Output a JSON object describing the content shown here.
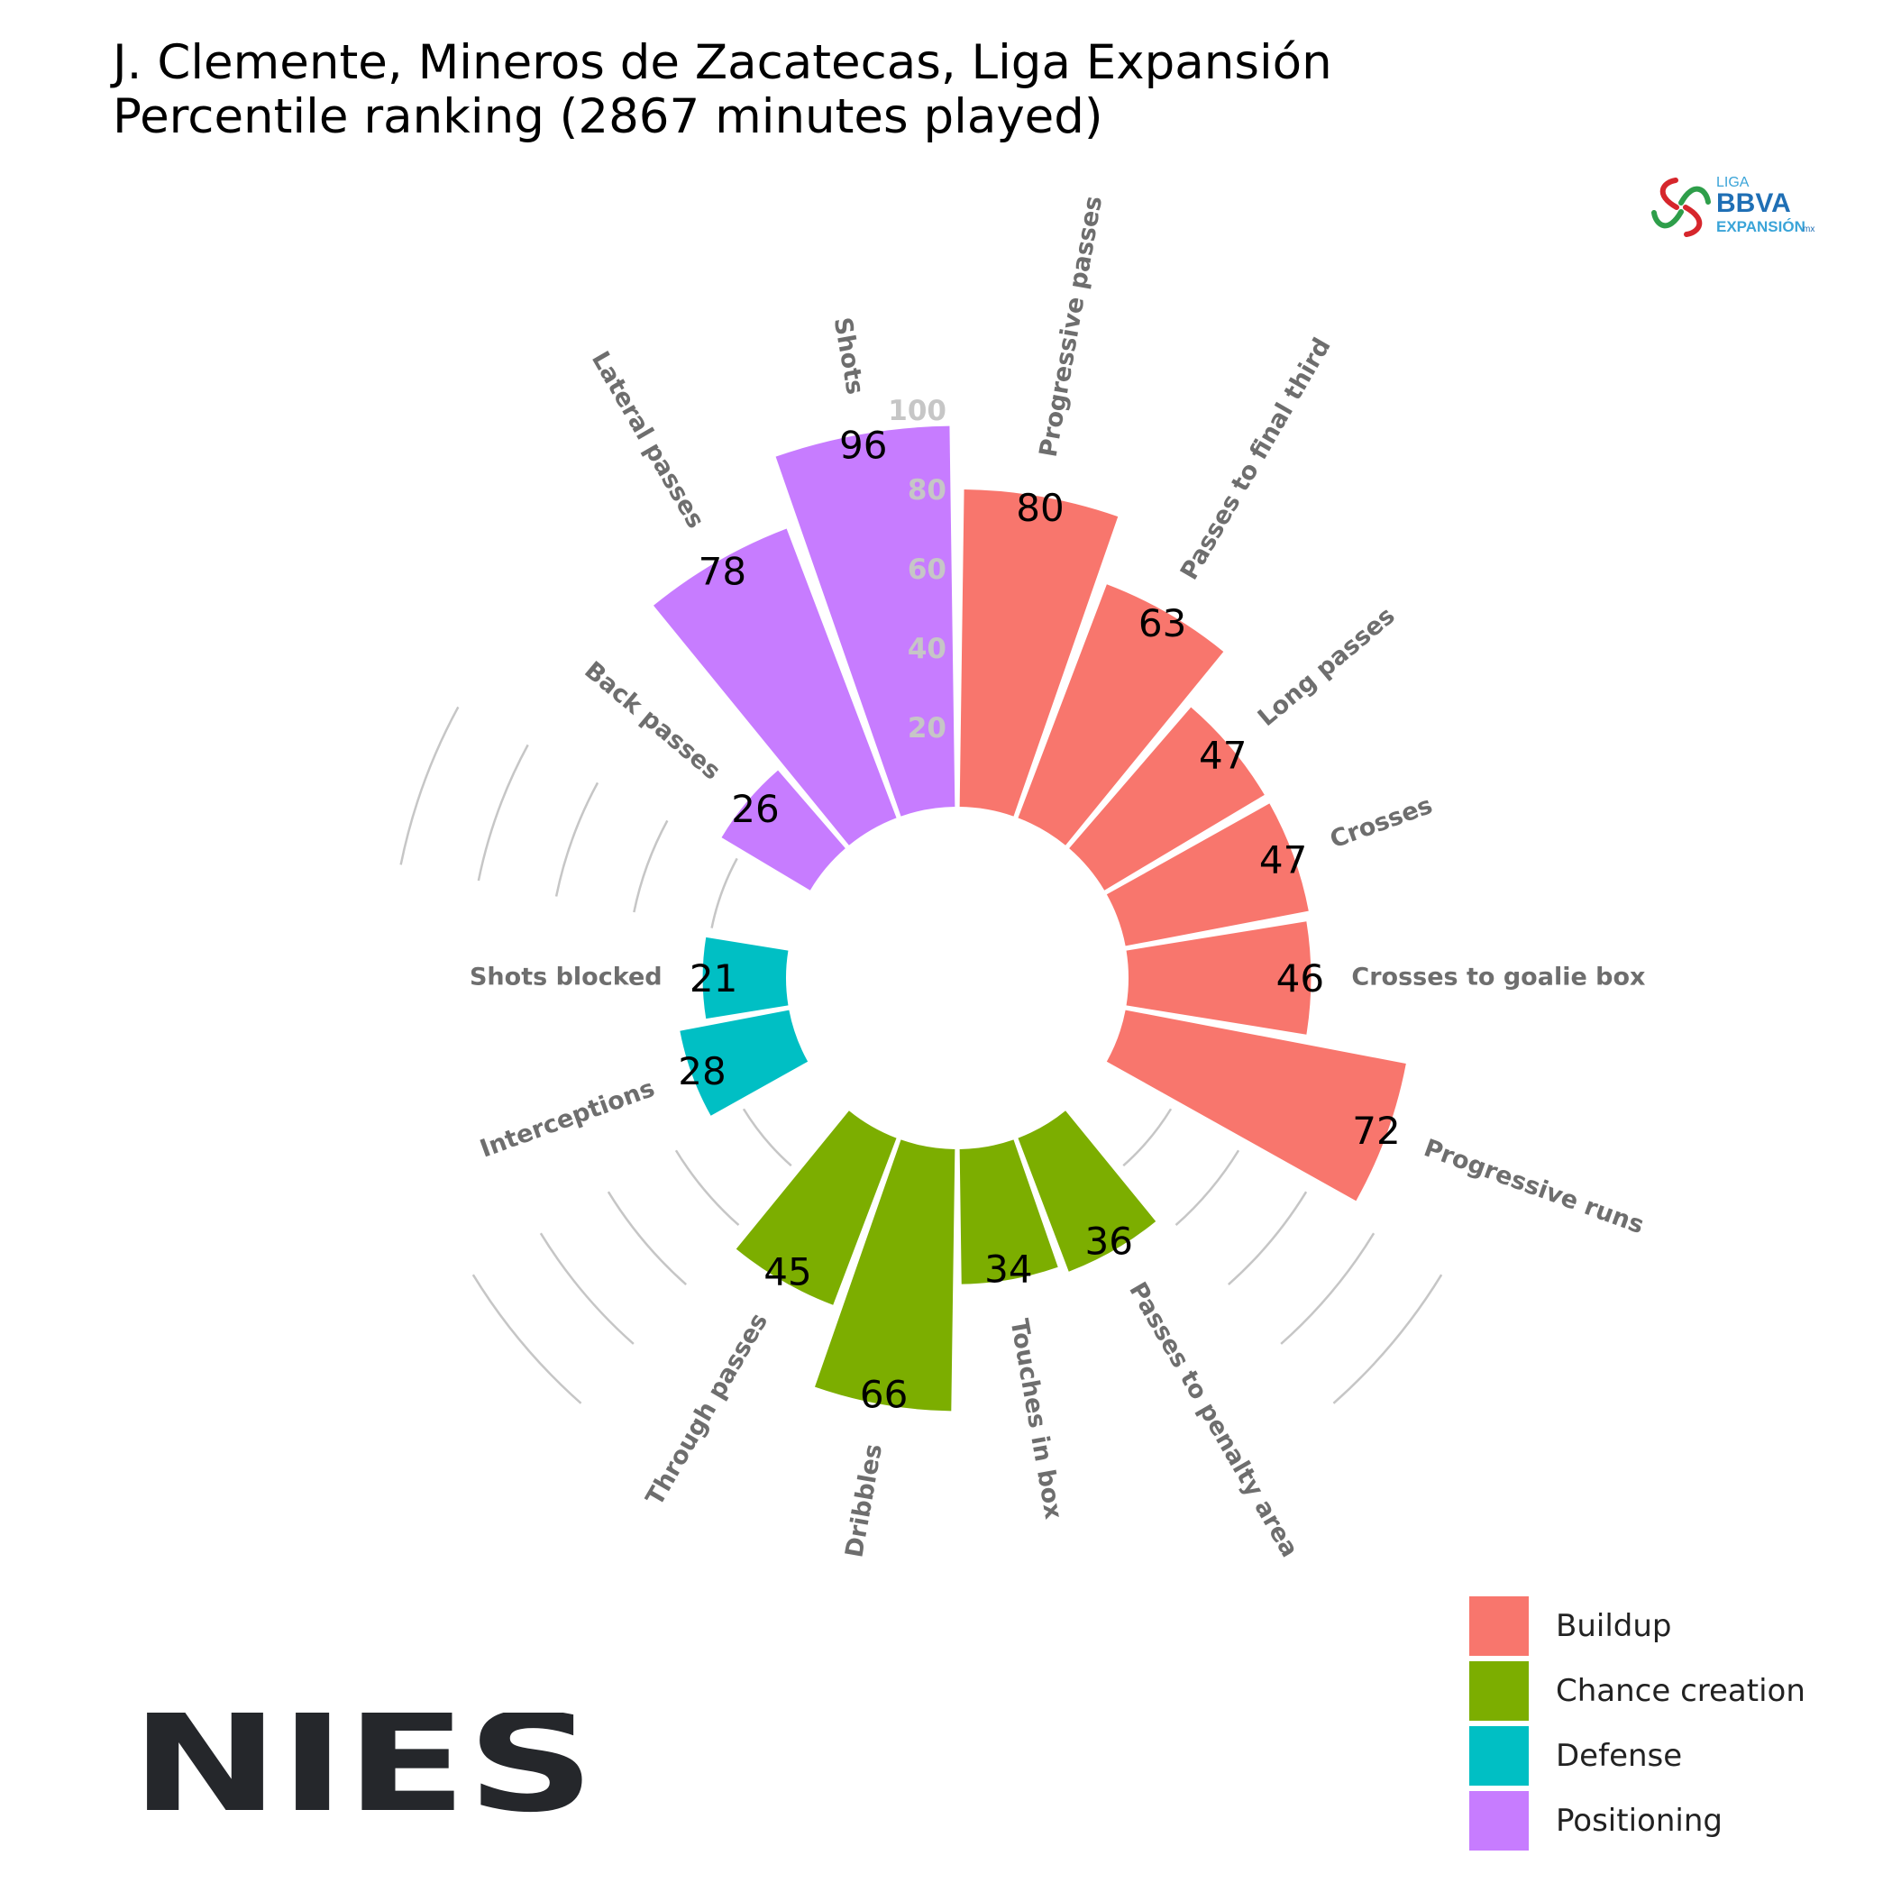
{
  "title": {
    "line1": "J. Clemente, Mineros de Zacatecas, Liga Expansión",
    "line2": "Percentile ranking (2867 minutes played)"
  },
  "colors": {
    "Buildup": "#F8766D",
    "Chance creation": "#7CAE00",
    "Defense": "#00BFC4",
    "Positioning": "#C77CFF",
    "grid": "#c6c6c6",
    "category_label": "#6e6e6e",
    "brand": "#25272b"
  },
  "chart_data": {
    "type": "polar-bar",
    "scale": {
      "min": 0,
      "max": 100,
      "ticks": [
        20,
        40,
        60,
        80,
        100
      ]
    },
    "categories": [
      {
        "name": "Progressive passes",
        "group": "Buildup",
        "value": 80
      },
      {
        "name": "Passes to final third",
        "group": "Buildup",
        "value": 63
      },
      {
        "name": "Long passes",
        "group": "Buildup",
        "value": 47
      },
      {
        "name": "Crosses",
        "group": "Buildup",
        "value": 47
      },
      {
        "name": "Crosses to goalie box",
        "group": "Buildup",
        "value": 46
      },
      {
        "name": "Progressive runs",
        "group": "Buildup",
        "value": 72
      },
      {
        "name": "Passes to penalty area",
        "group": "Chance creation",
        "value": 36
      },
      {
        "name": "Touches in box",
        "group": "Chance creation",
        "value": 34
      },
      {
        "name": "Dribbles",
        "group": "Chance creation",
        "value": 66
      },
      {
        "name": "Through passes",
        "group": "Chance creation",
        "value": 45
      },
      {
        "name": "Interceptions",
        "group": "Defense",
        "value": 28
      },
      {
        "name": "Shots blocked",
        "group": "Defense",
        "value": 21
      },
      {
        "name": "Back passes",
        "group": "Positioning",
        "value": 26
      },
      {
        "name": "Lateral passes",
        "group": "Positioning",
        "value": 78
      },
      {
        "name": "Shots",
        "group": "Positioning",
        "value": 96
      }
    ]
  },
  "legend": {
    "items": [
      "Buildup",
      "Chance creation",
      "Defense",
      "Positioning"
    ]
  },
  "logos": {
    "liga": {
      "line1": "LIGA",
      "line2": "BBVA",
      "line3": "EXPANSIÓN",
      "suffix": "mx"
    },
    "brand": "NIES"
  }
}
